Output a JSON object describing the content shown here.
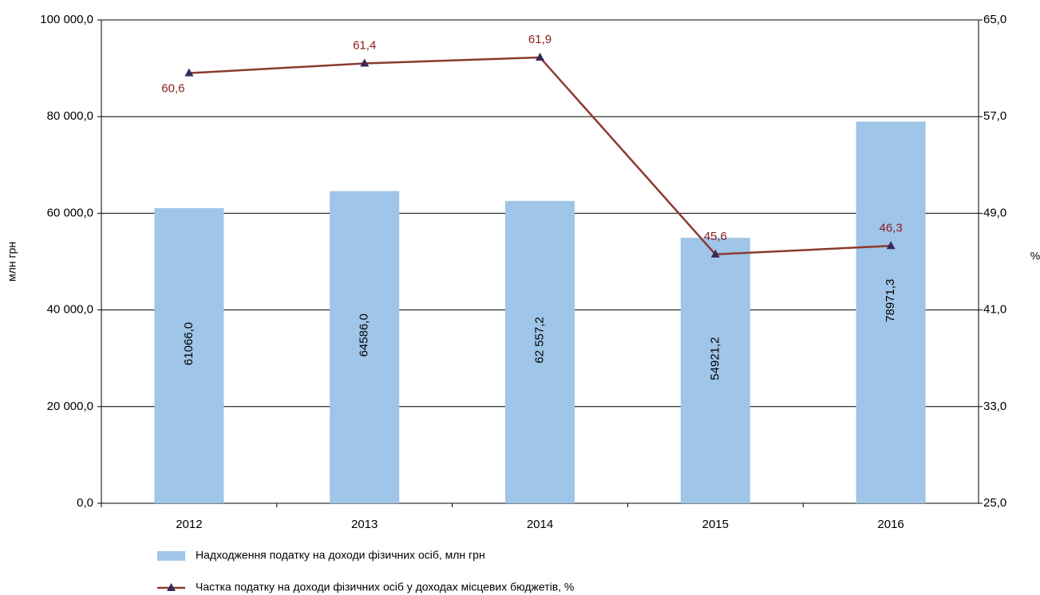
{
  "chart_data": {
    "type": "bar_line",
    "y_label": "млн грн",
    "y2_label": "%",
    "categories": [
      "2012",
      "2013",
      "2014",
      "2015",
      "2016"
    ],
    "series": [
      {
        "name": "Надходження податку на доходи фізичних осіб, млн грн",
        "type": "bar",
        "color": "#9fc5e8",
        "values": [
          61066.0,
          64586.0,
          62557.2,
          54921.2,
          78971.3
        ],
        "value_labels": [
          "61066,0",
          "64586,0",
          "62 557,2",
          "54921,2",
          "78971,3"
        ]
      },
      {
        "name": "Частка податку на доходи фізичних осіб у доходах місцевих бюджетів, %",
        "type": "line",
        "axis": "y2",
        "color": "#8b3a2e",
        "marker_color": "#3a2858",
        "values": [
          60.6,
          61.4,
          61.9,
          45.6,
          46.3
        ],
        "value_labels": [
          "60,6",
          "61,4",
          "61,9",
          "45,6",
          "46,3"
        ]
      }
    ],
    "ylim": [
      0,
      100000
    ],
    "yticks": [
      {
        "value": 0,
        "label": "0,0"
      },
      {
        "value": 20000,
        "label": "20 000,0"
      },
      {
        "value": 40000,
        "label": "40 000,0"
      },
      {
        "value": 60000,
        "label": "60 000,0"
      },
      {
        "value": 80000,
        "label": "80 000,0"
      },
      {
        "value": 100000,
        "label": "100 000,0"
      }
    ],
    "y2lim": [
      25,
      65
    ],
    "y2ticks": [
      {
        "value": 25,
        "label": "25,0"
      },
      {
        "value": 33,
        "label": "33,0"
      },
      {
        "value": 41,
        "label": "41,0"
      },
      {
        "value": 49,
        "label": "49,0"
      },
      {
        "value": 57,
        "label": "57,0"
      },
      {
        "value": 65,
        "label": "65,0"
      }
    ],
    "grid": true,
    "legend": "bottom"
  }
}
